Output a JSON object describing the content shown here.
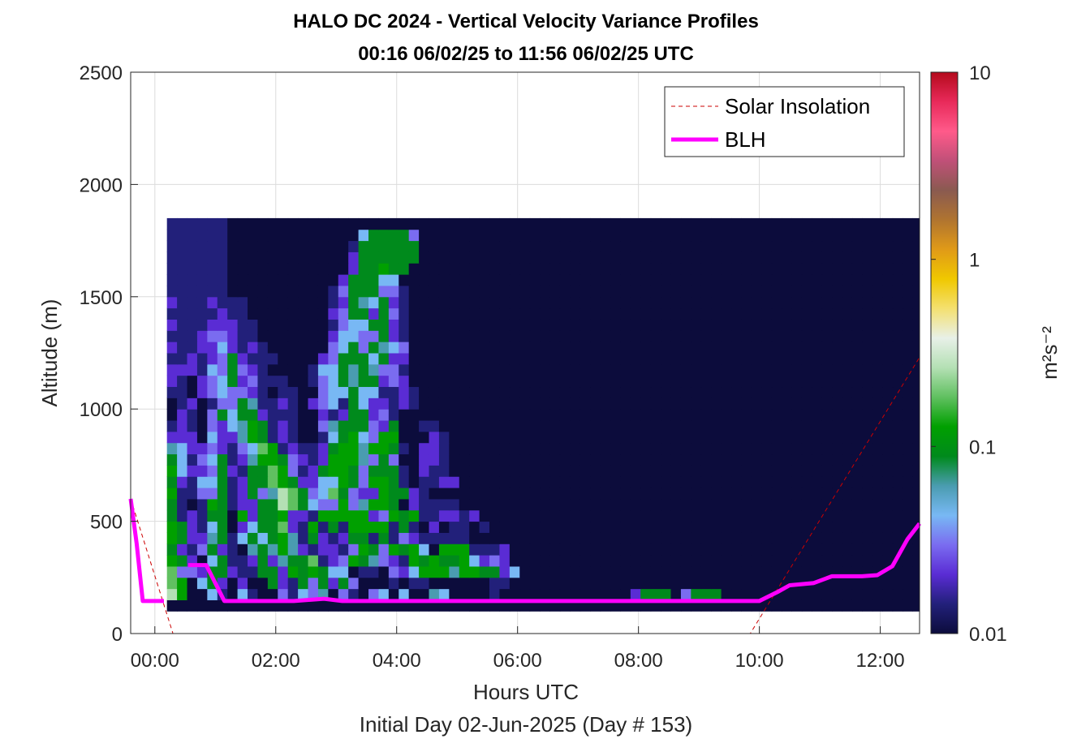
{
  "chart_data": {
    "type": "heatmap",
    "title": "HALO DC 2024 - Vertical Velocity Variance Profiles",
    "subtitle": "00:16 06/02/25 to 11:56 06/02/25  UTC",
    "xlabel": "Hours UTC",
    "xlabel2": "Initial Day 02-Jun-2025 (Day # 153)",
    "ylabel": "Altitude (m)",
    "xlim": [
      -0.4,
      12.65
    ],
    "ylim": [
      0,
      2500
    ],
    "x_ticks": [
      0,
      2,
      4,
      6,
      8,
      10,
      12
    ],
    "x_tick_labels": [
      "00:00",
      "02:00",
      "04:00",
      "06:00",
      "08:00",
      "10:00",
      "12:00"
    ],
    "y_ticks": [
      0,
      500,
      1000,
      1500,
      2000,
      2500
    ],
    "y_tick_labels": [
      "0",
      "500",
      "1000",
      "1500",
      "2000",
      "2500"
    ],
    "grid": true,
    "legend_position": "top-right",
    "colorbar": {
      "label": "m²s⁻²",
      "scale": "log",
      "range": [
        0.01,
        10
      ],
      "ticks": [
        0.01,
        0.1,
        1,
        10
      ],
      "tick_labels": [
        "0.01",
        "0.1",
        "1",
        "10"
      ],
      "colors": [
        "#0c0c3c",
        "#22207a",
        "#5a2cd4",
        "#7a6cf0",
        "#78b8f4",
        "#4a9cb0",
        "#008a1c",
        "#00a000",
        "#60c060",
        "#b4e0b4",
        "#e8f0e8",
        "#f4e070",
        "#f0c800",
        "#e09a18",
        "#b07430",
        "#8a5a50",
        "#c05078",
        "#ff5a8a",
        "#e82a5a",
        "#b40a1c"
      ]
    },
    "heatmap": {
      "x_start": 0.2,
      "x_step": 0.1667,
      "y_start": 100,
      "y_step": 50,
      "rows_bottom_up": [
        "aaaaaaaaaaaaaaaaaaaaaaaaaaaaaaaaaaaaaaaaaaaaaaaaaaaaaaaaaaaaaaaaaaaaaaaaaaaaaaaaaaaaaaaaaaaaaaaaaaaaaaaaaaaaaaaaaaaaaaaaaaaaaaaaaaaaaaaaaaaaaaaaaaaaaaaaaaaaaaaaaaaaaaaaaa",
        "jhaaebaebaadbedfadbadeaeaafeaaaabaaaaaaaaaaaaacgggadgggaaaaaaaaaaaaaaaaaaaaaaaaaaaaaaaaaaaaaaaaaaaaaaaaaaaaaaaaaaaaaaaaaaaaaaaaaaaaaaaaaaaaaaaaaaaaaaaaaaaaaaaaaaaaaaaa",
        "ihaegcacaagcbgdgcgdaaababbaaaaaabbaaaaaaaaaaaaaaaaaaaaaaaaaaaaaaaaaaaaaaaaaaaaaaaaaaaaaaaaaaaaaaaaaaaaaaaaaaaaaaaaaaaaaaaaaaaaaaaaaaaaaaaaaaaaaaaaaaaaaaaaaaaaaaaaaaaa",
        "iddcggcbbggchghgeeabbadcehhhfhhggceaaaaaaaaaaaaaaaaaaaaaaaaaaaaaaaaaaaaaaaaaaaaaaaaaaaaaaaaaaaaaaaaaaaaaaaaaaaaaaaaaaaaaaaaaaaaaaaaaaaaaaaaaaaaaaaaaaaaaaaaaaaaaaaaaaa",
        "hgcaegbbcgcfggibcdhgfdcbhghgghecdcaaaaaaaaaaaaaaaaaaaaaaaaaaaaaaaaaaaaaaaaaaaaaaaaaaaaaaaaaaaaaaaaaaaaaaaaaaaaaaaaaaaaaaaaaaaaaaaaaaaaaaaaaaaaaaaaaaaaaaaaaaaaaaaaaa",
        "gcbdgcbafgfhfcbccbdhgdhgheahhhbbbcaaaaaaaaaaaaaaaaaaaaaaaaaaaaaaaaaaaaaaaaaaaaaaaaaaaaaaaaaaaaaaaaaaaaaaaaaaaaaaaaaaaaaaaaaaaaaaaaaaaaaaaaaaaaaaaaaaaaaaaaaaaaaaaaaa",
        "hgccfgbegeghfbgcbcggbgbdcbbbbbaaaaaaaaaaaaaaaaaaaaaaaaaaaaaaaaaaaaaaaaaaaaaaaaaaaaaaaaaaaaaaaaaaaaaaaaaaaaaaaaaaaaaaaaaaaaaaaaaaaaaaaaaaaaaaaaaaaaaaaaaaaaaaaaaaaa",
        "hgcbegaceggicbhbgbhhhhbgbacabbabaaaaaaaaaaaaaaaaaaaaaaaaaaaaaaaaaaaaaaaaaaaaaaaaaaaaaaaaaaaaaaaaaaaaaaaaaaaaaaaaaaaaaaaaaaaaaaaaaaaaaaaaaaaaaaaaaaaaaaaaaaaaaaaaaaa",
        "gbcbggahcgghccbhhhhhcdhghbbccbcaaaaaaaaaaaaaaaaaaaaaaaaaaaaaaaaaaaaaaaaaaaaaaaaaaaaaaaaaaaaaaaaaaaaaaaaaaaaaaaaaaaaaaaaaaaaaaaaaaaaaaaaaaaaaaaaaaaaaaaaaaaaaaaaaaaa",
        "gbabhgbccggjigeddhdfhhgacbbbbaaaaaaaaaaaaaaaaaaaaaaaaaaaaaaaaaaaaaaaaaaaaaaaaaaaaaaaaaaaaaaaaaaaaaaaaaaaaaaaaaaaaaaaaaaaaaaaaaaaaaaaaaaaaaaaaaaaaaaaaaaaaaaaaaaaaa",
        "hbbddgbcgdfjigdeigdcchggcbaaaaaaaaaaaaaaaaaaaaaaaaaaaaaaaaaaaaaaaaaaaaaaaaaaaaaaaaaaaaaaaaaaaaaaaaaaaaaaaaaaaaaaaaaaaaaaaaaaaaaaaaaaaaaaaaaaaaaaaaaaaaaaaaaaaaaaaa",
        "gcbeegbcggihgcceehgdhhgbabbccaaaaaaaaaaaaaaaaaaaaaaaaaaaaaaaaaaaaaaaaaaaaaaaaaaaaaaaaaaaaaaaaaaaaaaaaaaaaaaaaaaaaaaaaaaaaaaaaaaaaaaaaaaaaaaaaaaaaaaaaaaaaaaaaaaaaa",
        "heccdgcbggihdbcghhgdgggbacbbaaaaaaaaaaaaaaaaaaaaaaaaaaaaaaaaaaaaaaaaaaaaaaaaaaaaaaaaaaaaaaaaaaaaaaaaaaaaaaaaaaaaaaaaaaaaaaaaaaaaaaaaaaaaaaaaaaaaaaaaaaaaaaaaaaaaaaa",
        "gebdegbcfhhgdcbchhhfdgdaaccbaaaaaaaaaaaaaaaaaaaaaaaaaaaaaaaaaaaaaaaaaaaaaaaaaaaaaaaaaaaaaaaaaaaaaaaaaaaaaaaaaaaaaaaaaaaaaaaaaaaaaaaaaaaaaaaaaaaaaaaaaaaaaaaaaaaaaaa",
        "feccdcbdeihbcbbcghhfhhgbaccbaaaaaaaaaaaaaaaaaaaaaaaaaaaaaaaaaaaaaaaaaaaaaaaaaaaaaaaaaaaaaaaaaaaaaaaaaaaaaaaaaaaaaaaaaaaaaaaaaaaaaaaaaaaaaaaaaaaaaaaaaaaaaaaaaaaaaaa",
        "cccaeccfhgbcbaabeghedhhaaacbaaaaaaaaaaaaaaaaaaaaaaaaaaaaaaaaaaaaaaaaaaaaaaaaaaaaaaaaaaaaaaaaaaaaaaaaaaaaaaaaaaaaaaaaaaaaaaaaaaaaaaaaaaaaaaaaaaaaaaaaaaaaaaaaaaaaaaa",
        "bcbadcefhgbcbaadfgggdcgaabbaaaaaaaaaaaaaaaaaaaaaaaaaaaaaaaaaaaaaaaaaaaaaaaaaaaaaaaaaaaaaaaaaaaaaaaaaaaaaaaaaaaaaaaaaaaaaaaaaaaaaaaaaaaaaaaaaaaaaaaaaaaaaaaaaaaaaaaa",
        "acbadgeggcbbbaacbcggcdbaaaaaaaaaaaaaaaaaaaaaaaaaaaaaaaaaaaaaaaaaaaaaaaaaaaaaaaaaaaaaaaaaaaaaaaaaaaaaaaaaaaaaaaaaaaaaaaaaaaaaaaaaaaaaaaaaaaaaaaaaaaaaaaaaaaaaaaaaaa",
        "abcabddgfbbcbacdebgeccbcbaaaaaaaaaaaaaaaaaaaaaaaaaaaaaaaaaaaaaaaaaaaaaaaaaaaaaaaaaaaaaaaaaaaaaaaaaaaaaaaaaaaaaaaaaaaaaaaaaaaaaaaaaaaaaaaaaaaaaaaaaaaaaaaaaaaaaaaaaa",
        "bbacdeddcbabbaadeegeebbcbaaaaaaaaaaaaaaaaaaaaaaaaaaaaaaaaaaaaaaaaaaaaaaaaaaaaaaaaaaaaaaaaaaaaaaaaaaaaaaaaaaaaaaaaaaaaaaaaaaaaaaaaaaaaaaaaaaaaaaaaaaaaaaaaaaaaaaaaaa",
        "cbacdegcdbbbaabdegfggcdcaaaaaaaaaaaaaaaaaaaaaaaaaaaaaaaaaaaaaaaaaaaaaaaaaaaaaaaaaaaaaaaaaaaaaaaaaaaaaaaaaaaaaaaaaaaaaaaaaaaaaaaaaaaaaaaaaaaaaaaaaaaaaaaaaaaaaaaaaaa",
        "cccbedgdcbaaaabeegfgfddbaaaaaaaaaaaaaaaaaaaaaaaaaaaaaaaaaaaaaaaaaaaaaaaaaaaaaaaaaaaaaaaaaaaaaaaaaaaaaaaaaaaaaaaaaaaaaaaaaaaaaaaaaaaaaaaaaaaaaaaaaaaaaaaaaaaaaaaaaaa",
        "bbcbcdgcbbbaaaacdgggegccaaaaaaaaaaaaaaaaaaaaaaaaaaaaaaaaaaaaaaaaaaaaaaaaaaaaaaaaaaaaaaaaaaaaaaaaaaaaaaaaaaaaaaaaaaaaaaaaaaaaaaaaaaaaaaaaaaaaaaaaaaaaaaaaaaaaaaaaaaa",
        "cbbccecbcbaaaaaadegdgfedaaaaaaaaaaaaaaaaaaaaaaaaaaaaaaaaaaaaaaaaaaaaaaaaaaaaaaaaaaaaaaaaaaaaaaaaaaaaaaaaaaaaaaaaaaaaaaaaaaaaaaaaaaaaaaaaaaaaaaaaaaaaaaaaaaaaaaaaaaaa",
        "bbbcddcbbaaaaaaaceeddgcbaaaaaaaaaaaaaaaaaaaaaaaaaaaaaaaaaaaaaaaaaaaaaaaaaaaaaaaaaaaaaaaaaaaaaaaaaaaaaaaaaaaaaaaaaaaaaaaaaaaaaaaaaaaaaaaaaaaaaaaaaaaaaaaaaaaaaaaaaaaa",
        "cbbbcccbbaaaaaaabdeeggcbaaaaaaaaaaaaaaaaaaaaaaaaaaaaaaaaaaaaaaaaaaaaaaaaaaaaaaaaaaaaaaaaaaaaaaaaaaaaaaaaaaaaaaaaaaaaaaaaaaaaaaaaaaaaaaaaaaaaaaaaaaaaaaaaaaaaaaaaaaaa",
        "bbbbbcbbaaaaaaaacdggcgdbaaaaaaaaaaaaaaaaaaaaaaaaaaaaaaaaaaaaaaaaaaaaaaaaaaaaaaaaaaaaaaaaaaaaaaaaaaaaaaaaaaaaaaaaaaaaaaaaaaaaaaaaaaaaaaaaaaaaaaaaaaaaaaaaaaaaaaaaaaaa",
        "cbbbcbbbaaaaaaaabcgfegcbaaaaaaaaaaaaaaaaaaaaaaaaaaaaaaaaaaaaaaaaaaaaaaaaaaaaaaaaaaaaaaaaaaaaaaaaaaaaaaaaaaaaaaaaaaaaaaaaaaaaaaaaaaaaaaaaaaaaaaaaaaaaaaaaaaaaaaaaaaaa",
        "bbbbbbaaaaaaaaaabdgggddbaaaaaaaaaaaaaaaaaaaaaaaaaaaaaaaaaaaaaaaaaaaaaaaaaaaaaaaaaaaaaaaaaaaaaaaaaaaaaaaaaaaaaaaaaaaaaaaaaaaaaaaaaaaaaaaaaaaaaaaaaaaaaaaaaaaaaaaaaaaa",
        "bbbbbbaaaaaaaaaaacgggeeaaaaaaaaaaaaaaaaaaaaaaaaaaaaaaaaaaaaaaaaaaaaaaaaaaaaaaaaaaaaaaaaaaaaaaaaaaaaaaaaaaaaaaaaaaaaaaaaaaaaaaaaaaaaaaaaaaaaaaaaaaaaaaaaaaaaaaaaaaaaa",
        "bbbbbbaaaaaaaaaaaacgghggaaaaaaaaaaaaaaaaaaaaaaaaaaaaaaaaaaaaaaaaaaaaaaaaaaaaaaaaaaaaaaaaaaaaaaaaaaaaaaaaaaaaaaaaaaaaaaaaaaaaaaaaaaaaaaaaaaaaaaaaaaaaaaaaaaaaaaaaaaaa",
        "bbbbbbaaaaaaaaaaaacggggggaaaaaaaaaaaaaaaaaaaaaaaaaaaaaaaaaaaaaaaaaaaaaaaaaaaaaaaaaaaaaaaaaaaaaaaaaaaaaaaaaaaaaaaaaaaaaaaaaaaaaaaaaaaaaaaaaaaaaaaaaaaaaaaaaaaaaaaaaaa",
        "bbbbbbaaaaaaaaaaaabggggggaaaaaaaaaaaaaaaaaaaaaaaaaaaaaaaaaaaaaaaaaaaaaaaaaaaaaaaaaaaaaaaaaaaaaaaaaaaaaaaaaaaaaaaaaaaaaaaaaaaaaaaaaaaaaaaaaaaaaaaaaaaaaaaaaaaaaaaaaaa",
        "bbbbbbaaaaaaaaaaaaaeggggdaaaaaaaaaaaaaaaaaaaaaaaaaaaaaaaaaaaaaaaaaaaaaaaaaaaaaaaaaaaaaaaaaaaaaaaaaaaaaaaaaaaaaaaaaaaaaaaaaaaaaaaaaaaaaaaaaaaaaaaaaaaaaaaaaaaaaaaaaaa",
        "bbbbbbaaaaaaaaaaaaaaaaaaaaaaaaaaaaaaaaaaaaaaaaaaaaaaaaaaaaaaaaaaaaaaaaaaaaaaaaaaaaaaaaaaaaaaaaaaaaaaaaaaaaaaaaaaaaaaaaaaaaaaaaaaaaaaaaaaaaaaaaaaaaaaaaaaaaaaaaaaaaaa"
      ]
    },
    "series": [
      {
        "name": "Solar Insolation",
        "style": "dashed",
        "color": "#cc0000",
        "x": [
          -0.4,
          0.3,
          9.85,
          12.65
        ],
        "y": [
          600,
          0,
          0,
          1230
        ]
      },
      {
        "name": "BLH",
        "style": "solid",
        "color": "#ff00ff",
        "x": [
          -0.4,
          -0.3,
          -0.2,
          0.15,
          null,
          0.55,
          0.85,
          1.15,
          2.3,
          2.8,
          3.1,
          9.8,
          10.0,
          10.3,
          10.5,
          10.9,
          11.2,
          11.7,
          11.95,
          12.2,
          12.45,
          12.65
        ],
        "y": [
          600,
          400,
          145,
          145,
          null,
          305,
          305,
          145,
          145,
          155,
          145,
          145,
          145,
          185,
          215,
          225,
          255,
          255,
          260,
          300,
          420,
          490
        ]
      }
    ]
  }
}
